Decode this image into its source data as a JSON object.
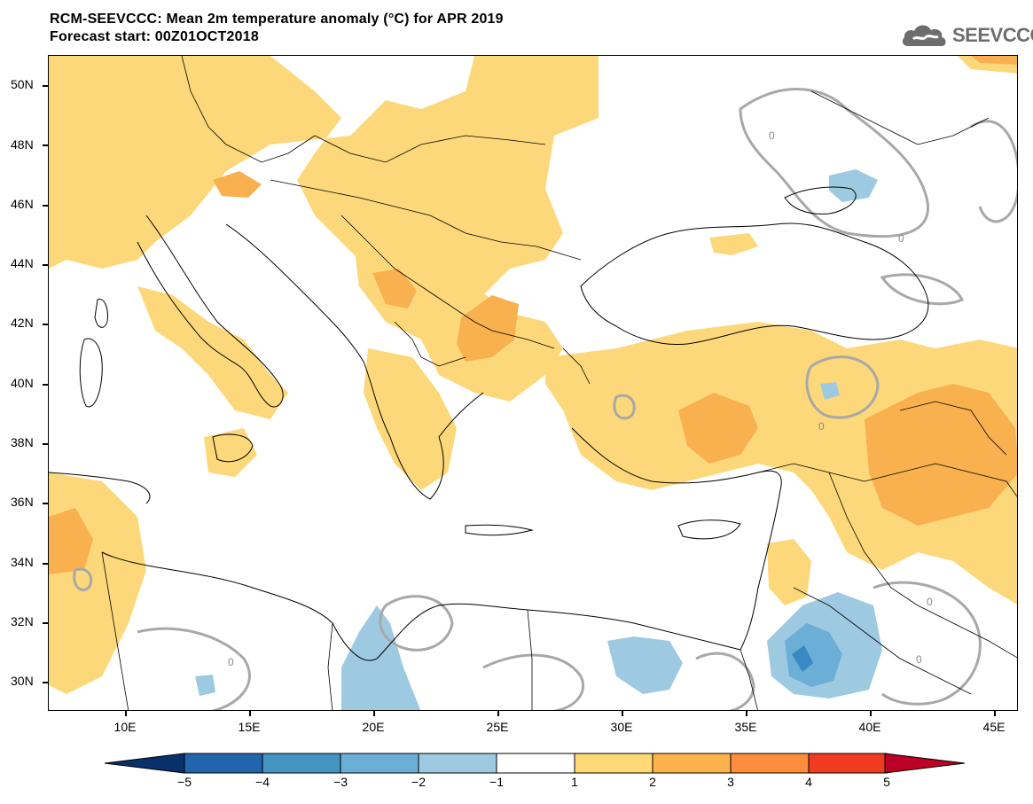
{
  "title": {
    "line1": "RCM-SEEVCCC: Mean 2m temperature anomaly (°C) for APR 2019",
    "line2": "Forecast start: 00Z01OCT2018"
  },
  "logo": {
    "text": "SEEVCCC",
    "icon": "cloud-icon"
  },
  "map": {
    "lat_labels": [
      "50N",
      "48N",
      "46N",
      "44N",
      "42N",
      "40N",
      "38N",
      "36N",
      "34N",
      "32N",
      "30N"
    ],
    "lon_labels": [
      "10E",
      "15E",
      "20E",
      "25E",
      "30E",
      "35E",
      "40E",
      "45E"
    ],
    "lat_range": [
      29,
      51
    ],
    "lon_range": [
      7,
      46
    ],
    "contour_label": "0"
  },
  "colorbar": {
    "ticks": [
      "−5",
      "−4",
      "−3",
      "−2",
      "−1",
      "1",
      "2",
      "3",
      "4",
      "5"
    ],
    "colors": [
      "#08306b",
      "#2166ac",
      "#4393c3",
      "#6baed6",
      "#9ecae1",
      "#ffffff",
      "#fed976",
      "#feb24c",
      "#fd8d3c",
      "#f03b20",
      "#bd0026"
    ]
  },
  "palette": {
    "anom_1_2": "#fdd87a",
    "anom_2_3": "#f9b04f",
    "anom_neg_1_2": "#9ecae1",
    "anom_neg_2_3": "#6baed6",
    "anom_neg_3_4": "#3a89c4",
    "zero_contour": "#a8a8a8",
    "coast": "#000000"
  }
}
